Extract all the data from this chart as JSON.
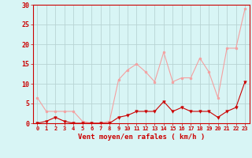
{
  "x": [
    0,
    1,
    2,
    3,
    4,
    5,
    6,
    7,
    8,
    9,
    10,
    11,
    12,
    13,
    14,
    15,
    16,
    17,
    18,
    19,
    20,
    21,
    22,
    23
  ],
  "rafales": [
    6.5,
    3.0,
    3.0,
    3.0,
    3.0,
    0.5,
    0.0,
    0.0,
    0.5,
    11.0,
    13.5,
    15.0,
    13.0,
    10.5,
    18.0,
    10.5,
    11.5,
    11.5,
    16.5,
    13.0,
    6.5,
    19.0,
    19.0,
    29.0
  ],
  "vent_moyen": [
    0.0,
    0.5,
    1.5,
    0.5,
    0.0,
    0.0,
    0.0,
    0.0,
    0.0,
    1.5,
    2.0,
    3.0,
    3.0,
    3.0,
    5.5,
    3.0,
    4.0,
    3.0,
    3.0,
    3.0,
    1.5,
    3.0,
    4.0,
    10.5
  ],
  "color_rafales": "#f4a0a0",
  "color_vent": "#cc0000",
  "bg_color": "#d8f5f5",
  "grid_color": "#b8d4d4",
  "xlabel": "Vent moyen/en rafales ( km/h )",
  "ylim": [
    0,
    30
  ],
  "xlim": [
    -0.5,
    23.5
  ],
  "yticks": [
    0,
    5,
    10,
    15,
    20,
    25,
    30
  ],
  "xticks": [
    0,
    1,
    2,
    3,
    4,
    5,
    6,
    7,
    8,
    9,
    10,
    11,
    12,
    13,
    14,
    15,
    16,
    17,
    18,
    19,
    20,
    21,
    22,
    23
  ],
  "tick_color": "#cc0000",
  "label_color": "#cc0000",
  "spine_color": "#cc0000"
}
